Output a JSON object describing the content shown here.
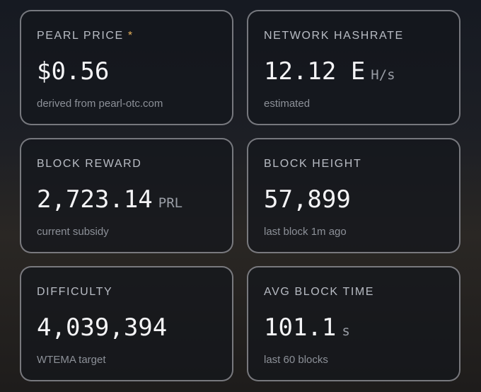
{
  "cards": [
    {
      "label": "PEARL PRICE",
      "marker": "*",
      "value": "$0.56",
      "note": "derived from pearl-otc.com"
    },
    {
      "label": "NETWORK HASHRATE",
      "value": "12.12 E",
      "unit": "H/s",
      "note": "estimated"
    },
    {
      "label": "BLOCK REWARD",
      "value": "2,723.14",
      "unit": "PRL",
      "note": "current subsidy"
    },
    {
      "label": "BLOCK HEIGHT",
      "value": "57,899",
      "note": "last block 1m ago"
    },
    {
      "label": "DIFFICULTY",
      "value": "4,039,394",
      "note": "WTEMA target"
    },
    {
      "label": "AVG BLOCK TIME",
      "value": "101.1",
      "unit": "s",
      "note": "last 60 blocks"
    }
  ]
}
